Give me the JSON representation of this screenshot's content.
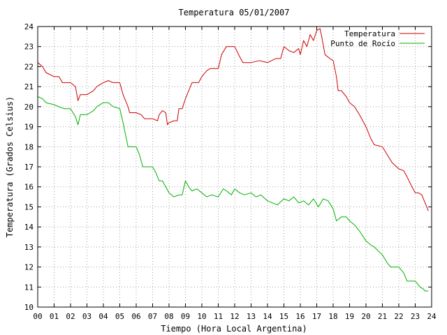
{
  "chart_data": {
    "type": "line",
    "title": "Temperatura 05/01/2007",
    "xlabel": "Tiempo (Hora Local Argentina)",
    "ylabel": "Temperatura (Grados Celsius)",
    "xlim": [
      0,
      24
    ],
    "ylim": [
      10,
      24
    ],
    "x_tick_labels": [
      "00",
      "01",
      "02",
      "03",
      "04",
      "05",
      "06",
      "07",
      "08",
      "09",
      "10",
      "11",
      "12",
      "13",
      "14",
      "15",
      "16",
      "17",
      "18",
      "19",
      "20",
      "21",
      "22",
      "23",
      "24"
    ],
    "y_tick_labels": [
      "10",
      "11",
      "12",
      "13",
      "14",
      "15",
      "16",
      "17",
      "18",
      "19",
      "20",
      "21",
      "22",
      "23",
      "24"
    ],
    "grid": true,
    "legend_position": "top-right",
    "series": [
      {
        "name": "Temperatura",
        "color": "#cc0000",
        "points": [
          [
            0.0,
            22.2
          ],
          [
            0.3,
            22.0
          ],
          [
            0.5,
            21.7
          ],
          [
            1.0,
            21.5
          ],
          [
            1.3,
            21.5
          ],
          [
            1.5,
            21.2
          ],
          [
            2.0,
            21.2
          ],
          [
            2.3,
            21.0
          ],
          [
            2.45,
            20.3
          ],
          [
            2.6,
            20.6
          ],
          [
            3.0,
            20.6
          ],
          [
            3.4,
            20.8
          ],
          [
            3.6,
            21.0
          ],
          [
            4.0,
            21.2
          ],
          [
            4.3,
            21.3
          ],
          [
            4.6,
            21.2
          ],
          [
            5.0,
            21.2
          ],
          [
            5.2,
            20.6
          ],
          [
            5.5,
            20.0
          ],
          [
            5.6,
            19.7
          ],
          [
            6.0,
            19.7
          ],
          [
            6.3,
            19.6
          ],
          [
            6.5,
            19.4
          ],
          [
            7.0,
            19.4
          ],
          [
            7.3,
            19.3
          ],
          [
            7.4,
            19.6
          ],
          [
            7.6,
            19.8
          ],
          [
            7.8,
            19.7
          ],
          [
            7.9,
            19.1
          ],
          [
            8.0,
            19.2
          ],
          [
            8.3,
            19.3
          ],
          [
            8.5,
            19.3
          ],
          [
            8.6,
            19.9
          ],
          [
            8.8,
            19.9
          ],
          [
            9.0,
            20.4
          ],
          [
            9.2,
            20.8
          ],
          [
            9.4,
            21.2
          ],
          [
            9.8,
            21.2
          ],
          [
            10.0,
            21.5
          ],
          [
            10.3,
            21.8
          ],
          [
            10.5,
            21.9
          ],
          [
            11.0,
            21.9
          ],
          [
            11.2,
            22.6
          ],
          [
            11.5,
            23.0
          ],
          [
            12.0,
            23.0
          ],
          [
            12.3,
            22.5
          ],
          [
            12.5,
            22.2
          ],
          [
            13.0,
            22.2
          ],
          [
            13.5,
            22.3
          ],
          [
            14.0,
            22.2
          ],
          [
            14.5,
            22.4
          ],
          [
            14.8,
            22.4
          ],
          [
            15.0,
            23.0
          ],
          [
            15.3,
            22.8
          ],
          [
            15.6,
            22.7
          ],
          [
            15.9,
            22.9
          ],
          [
            16.0,
            22.6
          ],
          [
            16.2,
            23.3
          ],
          [
            16.4,
            23.0
          ],
          [
            16.6,
            23.6
          ],
          [
            16.8,
            23.3
          ],
          [
            17.0,
            23.8
          ],
          [
            17.2,
            23.9
          ],
          [
            17.3,
            23.5
          ],
          [
            17.5,
            22.6
          ],
          [
            17.8,
            22.4
          ],
          [
            18.0,
            22.3
          ],
          [
            18.2,
            21.5
          ],
          [
            18.3,
            20.8
          ],
          [
            18.5,
            20.8
          ],
          [
            18.8,
            20.5
          ],
          [
            19.0,
            20.2
          ],
          [
            19.3,
            20.0
          ],
          [
            19.6,
            19.6
          ],
          [
            20.0,
            19.0
          ],
          [
            20.3,
            18.4
          ],
          [
            20.5,
            18.1
          ],
          [
            21.0,
            18.0
          ],
          [
            21.3,
            17.6
          ],
          [
            21.6,
            17.2
          ],
          [
            22.0,
            16.9
          ],
          [
            22.3,
            16.8
          ],
          [
            22.5,
            16.5
          ],
          [
            22.8,
            16.0
          ],
          [
            23.0,
            15.7
          ],
          [
            23.2,
            15.7
          ],
          [
            23.4,
            15.6
          ],
          [
            23.6,
            15.2
          ],
          [
            23.8,
            14.8
          ]
        ]
      },
      {
        "name": "Punto de Rocío",
        "color": "#00b000",
        "points": [
          [
            0.0,
            20.5
          ],
          [
            0.3,
            20.4
          ],
          [
            0.5,
            20.2
          ],
          [
            1.0,
            20.1
          ],
          [
            1.3,
            20.0
          ],
          [
            1.6,
            19.9
          ],
          [
            2.0,
            19.9
          ],
          [
            2.3,
            19.5
          ],
          [
            2.45,
            19.1
          ],
          [
            2.6,
            19.6
          ],
          [
            3.0,
            19.6
          ],
          [
            3.4,
            19.8
          ],
          [
            3.6,
            20.0
          ],
          [
            4.0,
            20.2
          ],
          [
            4.3,
            20.2
          ],
          [
            4.6,
            20.0
          ],
          [
            5.0,
            19.9
          ],
          [
            5.2,
            19.2
          ],
          [
            5.4,
            18.4
          ],
          [
            5.5,
            18.0
          ],
          [
            6.0,
            18.0
          ],
          [
            6.2,
            17.6
          ],
          [
            6.4,
            17.0
          ],
          [
            7.0,
            17.0
          ],
          [
            7.2,
            16.7
          ],
          [
            7.4,
            16.3
          ],
          [
            7.6,
            16.3
          ],
          [
            7.8,
            16.0
          ],
          [
            8.0,
            15.7
          ],
          [
            8.3,
            15.5
          ],
          [
            8.6,
            15.6
          ],
          [
            8.8,
            15.6
          ],
          [
            9.0,
            16.3
          ],
          [
            9.2,
            16.0
          ],
          [
            9.4,
            15.8
          ],
          [
            9.7,
            15.9
          ],
          [
            10.0,
            15.7
          ],
          [
            10.3,
            15.5
          ],
          [
            10.6,
            15.6
          ],
          [
            11.0,
            15.5
          ],
          [
            11.3,
            15.9
          ],
          [
            11.5,
            15.8
          ],
          [
            11.8,
            15.6
          ],
          [
            12.0,
            15.9
          ],
          [
            12.3,
            15.7
          ],
          [
            12.6,
            15.6
          ],
          [
            13.0,
            15.7
          ],
          [
            13.3,
            15.5
          ],
          [
            13.6,
            15.6
          ],
          [
            14.0,
            15.3
          ],
          [
            14.3,
            15.2
          ],
          [
            14.6,
            15.1
          ],
          [
            15.0,
            15.4
          ],
          [
            15.3,
            15.3
          ],
          [
            15.6,
            15.5
          ],
          [
            15.9,
            15.2
          ],
          [
            16.2,
            15.3
          ],
          [
            16.5,
            15.1
          ],
          [
            16.8,
            15.4
          ],
          [
            17.1,
            15.0
          ],
          [
            17.4,
            15.4
          ],
          [
            17.7,
            15.3
          ],
          [
            18.0,
            14.9
          ],
          [
            18.2,
            14.3
          ],
          [
            18.5,
            14.5
          ],
          [
            18.8,
            14.5
          ],
          [
            19.0,
            14.3
          ],
          [
            19.3,
            14.1
          ],
          [
            19.6,
            13.8
          ],
          [
            20.0,
            13.3
          ],
          [
            20.3,
            13.1
          ],
          [
            20.5,
            13.0
          ],
          [
            21.0,
            12.6
          ],
          [
            21.3,
            12.2
          ],
          [
            21.5,
            12.0
          ],
          [
            22.0,
            12.0
          ],
          [
            22.3,
            11.7
          ],
          [
            22.5,
            11.3
          ],
          [
            23.0,
            11.3
          ],
          [
            23.3,
            11.0
          ],
          [
            23.5,
            10.9
          ],
          [
            23.6,
            10.8
          ],
          [
            23.8,
            10.8
          ]
        ]
      }
    ]
  }
}
